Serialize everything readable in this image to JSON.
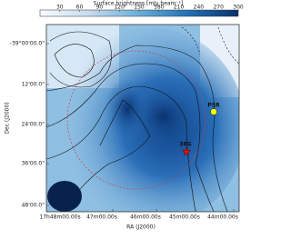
{
  "chart_data": {
    "type": "image",
    "colorbar": {
      "label": "Surface brightness [mJy beam⁻¹]",
      "clim": [
        0,
        300
      ],
      "ticks": [
        30,
        60,
        90,
        120,
        150,
        180,
        210,
        240,
        270,
        300
      ],
      "colors": [
        "#f7fbff",
        "#c6dbef",
        "#6baed6",
        "#2171b5",
        "#08306b"
      ]
    },
    "x_label": "RA (J2000)",
    "y_label": "Dec (J2000)",
    "xtick_labels": [
      "17h48m00.00s",
      "47m00.00s",
      "46m00.00s",
      "45m00.00s",
      "44m00.00s"
    ],
    "ytick_labels": [
      "-39°00'00.0\"",
      "12'00.0\"",
      "24'00.0\"",
      "36'00.0\"",
      "48'00.0\""
    ],
    "annotations": [
      {
        "text": "PSR",
        "color": "#ffff00"
      },
      {
        "text": "3EG",
        "color": "#dd1111"
      }
    ]
  }
}
